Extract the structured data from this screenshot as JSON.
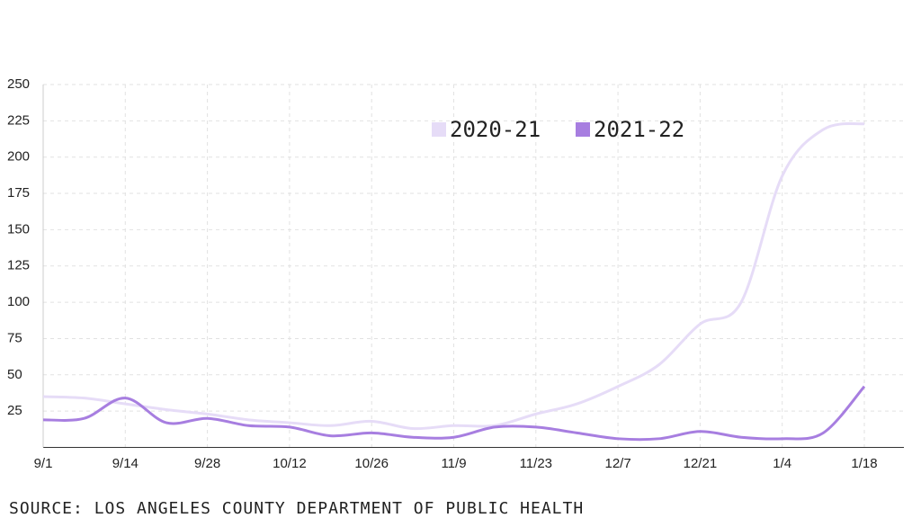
{
  "chart_data": {
    "type": "line",
    "categories": [
      "9/1",
      null,
      "9/14",
      null,
      "9/28",
      null,
      "10/12",
      null,
      "10/26",
      null,
      "11/9",
      null,
      "11/23",
      null,
      "12/7",
      null,
      "12/21",
      null,
      "1/4",
      null,
      "1/18"
    ],
    "series": [
      {
        "name": "2020-21",
        "color": "#e6dcf7",
        "values": [
          35,
          34,
          30,
          26,
          23,
          19,
          17,
          15,
          18,
          13,
          15,
          15,
          23,
          30,
          42,
          57,
          85,
          100,
          187,
          219,
          223
        ]
      },
      {
        "name": "2021-22",
        "color": "#a77ee0",
        "values": [
          19,
          20,
          34,
          17,
          20,
          15,
          14,
          8,
          10,
          7,
          7,
          14,
          14,
          10,
          6,
          6,
          11,
          7,
          6,
          10,
          42
        ]
      }
    ],
    "ylim": [
      0,
      250
    ],
    "yticks": [
      25,
      50,
      75,
      100,
      125,
      150,
      175,
      200,
      225,
      250
    ],
    "grid": true,
    "source": "SOURCE: LOS ANGELES COUNTY DEPARTMENT OF PUBLIC HEALTH"
  }
}
